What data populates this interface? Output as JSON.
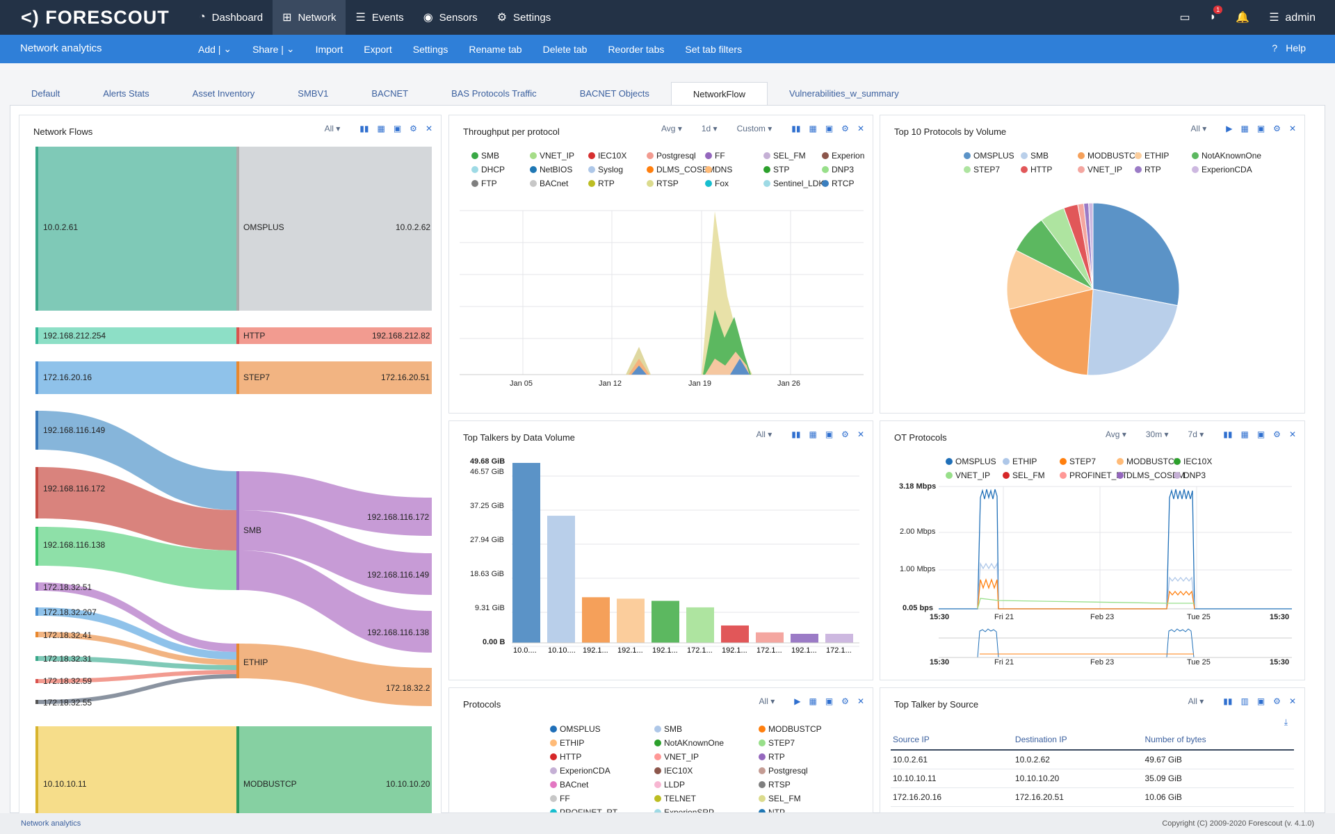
{
  "topbar": {
    "logo": "<) FORESCOUT",
    "nav": [
      {
        "label": "Dashboard",
        "icon": "gauge-icon"
      },
      {
        "label": "Network",
        "icon": "network-icon"
      },
      {
        "label": "Events",
        "icon": "list-icon"
      },
      {
        "label": "Sensors",
        "icon": "signal-icon"
      },
      {
        "label": "Settings",
        "icon": "gear-icon"
      }
    ],
    "notif_count": "1",
    "user": "admin"
  },
  "subbar": {
    "title": "Network analytics",
    "actions": [
      "Add |",
      "Share |",
      "Import",
      "Export",
      "Settings",
      "Rename tab",
      "Delete tab",
      "Reorder tabs",
      "Set tab filters"
    ],
    "help": "Help"
  },
  "tabs": [
    "Default",
    "Alerts Stats",
    "Asset Inventory",
    "SMBV1",
    "BACNET",
    "BAS Protocols Traffic",
    "BACNET Objects",
    "NetworkFlow",
    "Vulnerabilities_w_summary"
  ],
  "active_tab": "NetworkFlow",
  "flows": {
    "title": "Network Flows",
    "filter": "All",
    "rows": [
      {
        "src": "10.0.2.61",
        "proto": "OMSPLUS",
        "dst": "10.0.2.62",
        "color": "#7fc9b7"
      },
      {
        "src": "192.168.212.254",
        "proto": "HTTP",
        "dst": "192.168.212.82",
        "color": "#f29b90"
      },
      {
        "src": "172.16.20.16",
        "proto": "STEP7",
        "dst": "172.16.20.51",
        "color": "#f2b482"
      }
    ],
    "left_nodes": [
      "192.168.116.149",
      "192.168.116.172",
      "192.168.116.138",
      "172.18.32.51",
      "172.18.32.207",
      "172.18.32.41",
      "172.18.32.31",
      "172.18.32.59",
      "172.18.32.55",
      "10.10.10.11"
    ],
    "mid_nodes": [
      "SMB",
      "ETHIP",
      "MODBUSTCP"
    ],
    "right_nodes": [
      "192.168.116.172",
      "192.168.116.149",
      "192.168.116.138",
      "172.18.32.2",
      "10.10.10.20"
    ]
  },
  "throughput": {
    "title": "Throughput per protocol",
    "agg": "Avg",
    "range": "1d",
    "period": "Custom",
    "legend": [
      [
        "SMB",
        "#39a845"
      ],
      [
        "VNET_IP",
        "#a6dd88"
      ],
      [
        "IEC10X",
        "#d62f2f"
      ],
      [
        "Postgresql",
        "#f29b90"
      ],
      [
        "FF",
        "#9467bd"
      ],
      [
        "SEL_FM",
        "#c5b0d5"
      ],
      [
        "Experion",
        "#8c564b"
      ],
      [
        "DHCP",
        "#9edae5"
      ],
      [
        "NetBIOS",
        "#1f77b4"
      ],
      [
        "Syslog",
        "#aec7e8"
      ],
      [
        "DLMS_COSEM",
        "#ff7f0e"
      ],
      [
        "DNS",
        "#ffbb78"
      ],
      [
        "STP",
        "#2ca02c"
      ],
      [
        "DNP3",
        "#98df8a"
      ],
      [
        "FTP",
        "#7f7f7f"
      ],
      [
        "BACnet",
        "#c7c7c7"
      ],
      [
        "RTP",
        "#bcbd22"
      ],
      [
        "RTSP",
        "#dbdb8d"
      ],
      [
        "Fox",
        "#17becf"
      ],
      [
        "Sentinel_LDK",
        "#9edae5"
      ],
      [
        "RTCP",
        "#3a7fbf"
      ]
    ],
    "x_ticks": [
      "Jan 05",
      "Jan 12",
      "Jan 19",
      "Jan 26"
    ]
  },
  "top10": {
    "title": "Top 10 Protocols by Volume",
    "filter": "All",
    "legend": [
      [
        "OMSPLUS",
        "#5b93c7"
      ],
      [
        "SMB",
        "#b9cfea"
      ],
      [
        "MODBUSTCP",
        "#f5a05a"
      ],
      [
        "ETHIP",
        "#fbcd9c"
      ],
      [
        "NotAKnownOne",
        "#5cb860"
      ],
      [
        "STEP7",
        "#aee4a0"
      ],
      [
        "HTTP",
        "#e15759"
      ],
      [
        "VNET_IP",
        "#f4a6a0"
      ],
      [
        "RTP",
        "#9b7bc6"
      ],
      [
        "ExperionCDA",
        "#cdb8e0"
      ]
    ]
  },
  "top_talkers": {
    "title": "Top Talkers by Data Volume",
    "filter": "All",
    "y_ticks": [
      "49.68 GiB",
      "46.57 GiB",
      "37.25 GiB",
      "27.94 GiB",
      "18.63 GiB",
      "9.31 GiB",
      "0.00 B"
    ],
    "x_labels": [
      "10.0....",
      "10.10....",
      "192.1...",
      "192.1...",
      "192.1...",
      "172.1...",
      "192.1...",
      "172.1...",
      "192.1...",
      "172.1..."
    ]
  },
  "ot": {
    "title": "OT Protocols",
    "agg": "Avg",
    "step": "30m",
    "range": "7d",
    "legend": [
      [
        "OMSPLUS",
        "#1f6fb8"
      ],
      [
        "ETHIP",
        "#aec7e8"
      ],
      [
        "STEP7",
        "#ff7f0e"
      ],
      [
        "MODBUSTCP",
        "#ffbb78"
      ],
      [
        "IEC10X",
        "#2ca02c"
      ],
      [
        "VNET_IP",
        "#98df8a"
      ],
      [
        "SEL_FM",
        "#d62728"
      ],
      [
        "PROFINET_RT",
        "#ff9896"
      ],
      [
        "DLMS_COSEM",
        "#9467bd"
      ],
      [
        "DNP3",
        "#c5b0d5"
      ]
    ],
    "y_ticks": [
      "3.18 Mbps",
      "2.00 Mbps",
      "1.00 Mbps",
      "0.05 bps"
    ],
    "x_ticks": [
      "15:30",
      "Fri 21",
      "Feb 23",
      "Tue 25",
      "15:30"
    ]
  },
  "protocols": {
    "title": "Protocols",
    "filter": "All",
    "legend": [
      [
        "OMSPLUS",
        "#1f6fb8"
      ],
      [
        "SMB",
        "#aec7e8"
      ],
      [
        "MODBUSTCP",
        "#ff7f0e"
      ],
      [
        "ETHIP",
        "#ffbb78"
      ],
      [
        "NotAKnownOne",
        "#2ca02c"
      ],
      [
        "STEP7",
        "#98df8a"
      ],
      [
        "HTTP",
        "#d62728"
      ],
      [
        "VNET_IP",
        "#ff9896"
      ],
      [
        "RTP",
        "#9467bd"
      ],
      [
        "ExperionCDA",
        "#c5b0d5"
      ],
      [
        "IEC10X",
        "#8c564b"
      ],
      [
        "Postgresql",
        "#c49c94"
      ],
      [
        "BACnet",
        "#e377c2"
      ],
      [
        "LLDP",
        "#f7b6d2"
      ],
      [
        "RTSP",
        "#7f7f7f"
      ],
      [
        "FF",
        "#c7c7c7"
      ],
      [
        "TELNET",
        "#bcbd22"
      ],
      [
        "SEL_FM",
        "#dbdb8d"
      ],
      [
        "PROFINET_RT",
        "#17becf"
      ],
      [
        "ExperionSRP",
        "#9edae5"
      ],
      [
        "NTP",
        "#1f77b4"
      ]
    ]
  },
  "talker_source": {
    "title": "Top Talker by Source",
    "filter": "All",
    "columns": [
      "Source IP",
      "Destination IP",
      "Number of bytes"
    ],
    "rows": [
      [
        "10.0.2.61",
        "10.0.2.62",
        "49.67 GiB"
      ],
      [
        "10.10.10.11",
        "10.10.10.20",
        "35.09 GiB"
      ],
      [
        "172.16.20.16",
        "172.16.20.51",
        "10.06 GiB"
      ]
    ]
  },
  "footer": {
    "left": "Network analytics",
    "right": "Copyright (C) 2009-2020 Forescout (v. 4.1.0)"
  },
  "chart_data": [
    {
      "type": "bar",
      "title": "Top Talkers by Data Volume",
      "categories": [
        "10.0....",
        "10.10....",
        "192.1...",
        "192.1...",
        "192.1...",
        "172.1...",
        "192.1...",
        "172.1...",
        "192.1...",
        "172.1..."
      ],
      "values": [
        49.67,
        35.09,
        12.6,
        12.2,
        11.6,
        9.8,
        4.8,
        2.9,
        2.5,
        2.5
      ],
      "ylim": [
        0,
        49.68
      ],
      "colors": [
        "#5b93c7",
        "#b9cfea",
        "#f5a05a",
        "#fbcd9c",
        "#5cb860",
        "#aee4a0",
        "#e15759",
        "#f4a6a0",
        "#9b7bc6",
        "#cdb8e0"
      ]
    },
    {
      "type": "pie",
      "title": "Top 10 Protocols by Volume",
      "labels": [
        "OMSPLUS",
        "SMB",
        "MODBUSTCP",
        "ETHIP",
        "NotAKnownOne",
        "STEP7",
        "HTTP",
        "VNET_IP",
        "RTP",
        "ExperionCDA"
      ],
      "values": [
        27.5,
        22.5,
        19.8,
        11.0,
        7.2,
        4.6,
        2.6,
        1.1,
        0.9,
        0.8
      ],
      "colors": [
        "#5b93c7",
        "#b9cfea",
        "#f5a05a",
        "#fbcd9c",
        "#5cb860",
        "#aee4a0",
        "#e15759",
        "#f4a6a0",
        "#9b7bc6",
        "#cdb8e0"
      ]
    }
  ]
}
